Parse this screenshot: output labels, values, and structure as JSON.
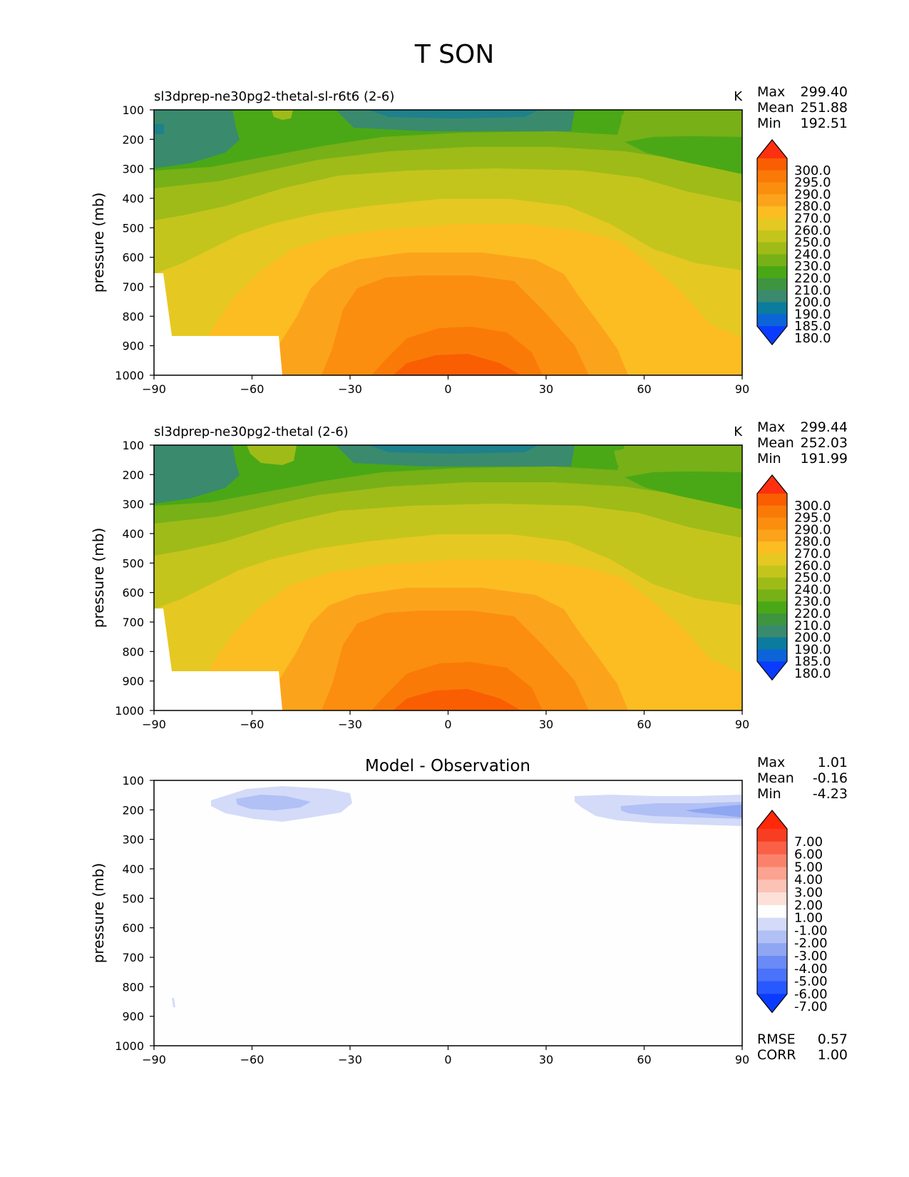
{
  "figure": {
    "title": "T SON"
  },
  "palettes": {
    "temperature": [
      "#0a3cff",
      "#0c64d8",
      "#0b7c9e",
      "#3a8a6e",
      "#3f9440",
      "#4aa816",
      "#78b017",
      "#9fbb18",
      "#c4c51c",
      "#e6c823",
      "#fcbd22",
      "#fca31c",
      "#fb8e0f",
      "#fa7a08",
      "#f95e02",
      "#ff3010"
    ],
    "difference": [
      "#0a3cff",
      "#2858ff",
      "#4b72fa",
      "#6a8af5",
      "#8fa6f2",
      "#b1c0f5",
      "#d3dbf9",
      "#fefefe",
      "#fde0d8",
      "#fcc2b6",
      "#fca290",
      "#fb826a",
      "#f96046",
      "#f73e22",
      "#ff2808"
    ]
  },
  "chart_data": [
    {
      "type": "contour",
      "subtitle": "sl3dprep-ne30pg2-thetal-sl-r6t6 (2-6)",
      "units": "K",
      "ylabel": "pressure (mb)",
      "xlim": [
        -90,
        90
      ],
      "ylim": [
        1000,
        100
      ],
      "xticks": [
        "−90",
        "−60",
        "−30",
        "0",
        "30",
        "60",
        "90"
      ],
      "yticks": [
        "100",
        "200",
        "300",
        "400",
        "500",
        "600",
        "700",
        "800",
        "900",
        "1000"
      ],
      "stats": {
        "max_label": "Max",
        "max": "299.40",
        "mean_label": "Mean",
        "mean": "251.88",
        "min_label": "Min",
        "min": "192.51"
      },
      "colorbar": {
        "palette": "temperature",
        "levels": [
          "300.0",
          "295.0",
          "290.0",
          "280.0",
          "270.0",
          "260.0",
          "250.0",
          "240.0",
          "230.0",
          "220.0",
          "210.0",
          "200.0",
          "190.0",
          "185.0",
          "180.0"
        ]
      }
    },
    {
      "type": "contour",
      "subtitle": "sl3dprep-ne30pg2-thetal (2-6)",
      "units": "K",
      "ylabel": "pressure (mb)",
      "xlim": [
        -90,
        90
      ],
      "ylim": [
        1000,
        100
      ],
      "xticks": [
        "−90",
        "−60",
        "−30",
        "0",
        "30",
        "60",
        "90"
      ],
      "yticks": [
        "100",
        "200",
        "300",
        "400",
        "500",
        "600",
        "700",
        "800",
        "900",
        "1000"
      ],
      "stats": {
        "max_label": "Max",
        "max": "299.44",
        "mean_label": "Mean",
        "mean": "252.03",
        "min_label": "Min",
        "min": "191.99"
      },
      "colorbar": {
        "palette": "temperature",
        "levels": [
          "300.0",
          "295.0",
          "290.0",
          "280.0",
          "270.0",
          "260.0",
          "250.0",
          "240.0",
          "230.0",
          "220.0",
          "210.0",
          "200.0",
          "190.0",
          "185.0",
          "180.0"
        ]
      }
    },
    {
      "type": "contour",
      "title": "Model - Observation",
      "ylabel": "pressure (mb)",
      "xlim": [
        -90,
        90
      ],
      "ylim": [
        1000,
        100
      ],
      "xticks": [
        "−90",
        "−60",
        "−30",
        "0",
        "30",
        "60",
        "90"
      ],
      "yticks": [
        "100",
        "200",
        "300",
        "400",
        "500",
        "600",
        "700",
        "800",
        "900",
        "1000"
      ],
      "stats": {
        "max_label": "Max",
        "max": "1.01",
        "mean_label": "Mean",
        "mean": "-0.16",
        "min_label": "Min",
        "min": "-4.23"
      },
      "colorbar": {
        "palette": "difference",
        "levels": [
          "7.00",
          "6.00",
          "5.00",
          "4.00",
          "3.00",
          "2.00",
          "1.00",
          "-1.00",
          "-2.00",
          "-3.00",
          "-4.00",
          "-5.00",
          "-6.00",
          "-7.00"
        ]
      },
      "metrics": {
        "rmse_label": "RMSE",
        "rmse": "0.57",
        "corr_label": "CORR",
        "corr": "1.00"
      }
    }
  ]
}
